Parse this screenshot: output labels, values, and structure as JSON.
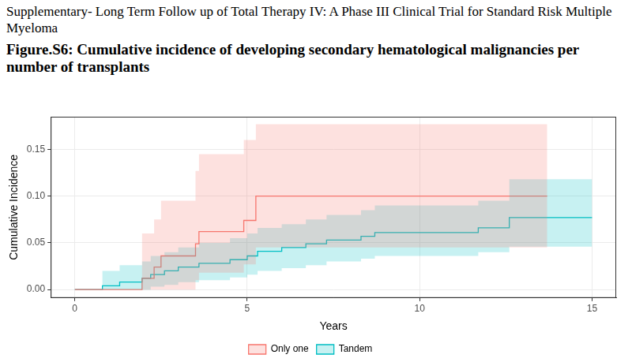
{
  "header": "Supplementary- Long Term Follow up of Total Therapy IV: A Phase III Clinical Trial for Standard Risk Multiple Myeloma",
  "chart_data": {
    "type": "step",
    "title": "Figure.S6: Cumulative incidence of developing secondary hematological malignancies per number of transplants",
    "x_label": "Years",
    "y_label": "Cumulative Incidence",
    "xlim": [
      -0.7,
      15.7
    ],
    "xticks": [
      0,
      5,
      10,
      15
    ],
    "ylim": [
      -0.009,
      0.185
    ],
    "yticks": [
      {
        "value": 0,
        "label": "0.00"
      },
      {
        "value": 0.05,
        "label": "0.05"
      },
      {
        "value": 0.1,
        "label": "0.10"
      },
      {
        "value": 0.15,
        "label": "0.15"
      }
    ],
    "grid": true,
    "legend": "bottom",
    "series": [
      {
        "name": "Only one",
        "color": "#F8766D",
        "x": [
          0,
          1.95,
          2.3,
          2.5,
          3.5,
          3.6,
          4.9,
          5.25,
          13.7
        ],
        "values": [
          0,
          0.012,
          0.024,
          0.036,
          0.049,
          0.062,
          0.074,
          0.1,
          0.1
        ],
        "lower": [
          0,
          0,
          0,
          0,
          0.01,
          0.018,
          0.027,
          0.045,
          0.045
        ],
        "upper": [
          0,
          0.06,
          0.075,
          0.095,
          0.127,
          0.145,
          0.16,
          0.177,
          0.177
        ]
      },
      {
        "name": "Tandem",
        "color": "#00BFC4",
        "x": [
          0,
          0.8,
          1.3,
          1.95,
          2.2,
          2.6,
          3.0,
          3.6,
          4.5,
          5.0,
          5.3,
          6.0,
          6.7,
          7.3,
          8.3,
          8.7,
          11.7,
          12.6,
          15
        ],
        "values": [
          0,
          0.004,
          0.008,
          0.012,
          0.016,
          0.02,
          0.024,
          0.028,
          0.032,
          0.036,
          0.041,
          0.045,
          0.049,
          0.053,
          0.057,
          0.061,
          0.066,
          0.077,
          0.077
        ],
        "lower": [
          0,
          0,
          0,
          0,
          0.003,
          0.005,
          0.008,
          0.01,
          0.013,
          0.016,
          0.02,
          0.023,
          0.026,
          0.03,
          0.033,
          0.036,
          0.04,
          0.046,
          0.046
        ],
        "upper": [
          0,
          0.02,
          0.026,
          0.03,
          0.036,
          0.04,
          0.045,
          0.05,
          0.055,
          0.06,
          0.066,
          0.07,
          0.075,
          0.08,
          0.085,
          0.09,
          0.095,
          0.118,
          0.118
        ]
      }
    ]
  }
}
